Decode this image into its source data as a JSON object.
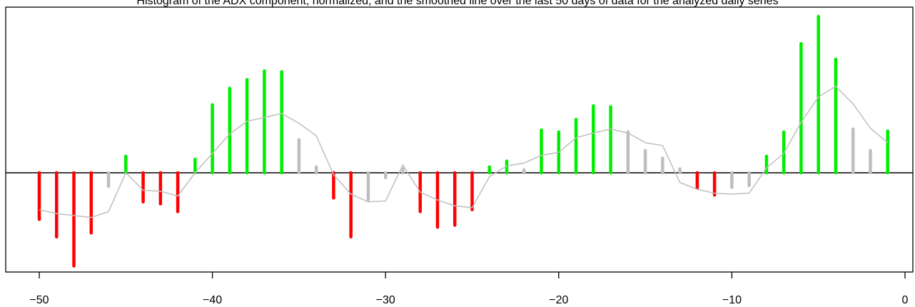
{
  "chart_data": {
    "type": "bar",
    "title": "Histogram of the ADX component, normalized, and the smoothed line over the last 50 days of data for the analyzed daily series",
    "xlim": [
      -50,
      0
    ],
    "ylim": [
      -5.2,
      8.1
    ],
    "grid": false,
    "legend": "none",
    "x_ticks": [
      -50,
      -40,
      -30,
      -20,
      -10,
      0
    ],
    "x_tick_labels": [
      "−50",
      "−40",
      "−30",
      "−20",
      "−10",
      "0"
    ],
    "x": [
      -50,
      -49,
      -48,
      -47,
      -46,
      -45,
      -44,
      -43,
      -42,
      -41,
      -40,
      -39,
      -38,
      -37,
      -36,
      -35,
      -34,
      -33,
      -32,
      -31,
      -30,
      -29,
      -28,
      -27,
      -26,
      -25,
      -24,
      -23,
      -22,
      -21,
      -20,
      -19,
      -18,
      -17,
      -16,
      -15,
      -14,
      -13,
      -12,
      -11,
      -10,
      -9,
      -8,
      -7,
      -6,
      -5,
      -4,
      -3,
      -2,
      -1
    ],
    "values": [
      -2.4,
      -3.3,
      -4.8,
      -3.1,
      -0.7,
      0.85,
      -1.5,
      -1.6,
      -2.0,
      0.7,
      3.5,
      4.35,
      4.8,
      5.25,
      5.2,
      1.7,
      0.3,
      -1.3,
      -3.3,
      -1.4,
      -0.25,
      0.2,
      -2.0,
      -2.8,
      -2.7,
      -1.9,
      0.3,
      0.6,
      0.15,
      2.2,
      2.1,
      2.75,
      3.45,
      3.4,
      2.1,
      1.15,
      0.75,
      0.2,
      -0.8,
      -1.15,
      -0.75,
      -0.65,
      0.85,
      2.1,
      6.65,
      8.05,
      5.85,
      2.25,
      1.15,
      2.15
    ],
    "colors": [
      "#FF0000",
      "#FF0000",
      "#FF0000",
      "#FF0000",
      "#BEBEBE",
      "#00EE00",
      "#FF0000",
      "#FF0000",
      "#FF0000",
      "#00EE00",
      "#00EE00",
      "#00EE00",
      "#00EE00",
      "#00EE00",
      "#00EE00",
      "#BEBEBE",
      "#BEBEBE",
      "#FF0000",
      "#FF0000",
      "#BEBEBE",
      "#BEBEBE",
      "#BEBEBE",
      "#FF0000",
      "#FF0000",
      "#FF0000",
      "#FF0000",
      "#00EE00",
      "#00EE00",
      "#BEBEBE",
      "#00EE00",
      "#00EE00",
      "#00EE00",
      "#00EE00",
      "#00EE00",
      "#BEBEBE",
      "#BEBEBE",
      "#BEBEBE",
      "#BEBEBE",
      "#FF0000",
      "#FF0000",
      "#BEBEBE",
      "#BEBEBE",
      "#00EE00",
      "#00EE00",
      "#00EE00",
      "#00EE00",
      "#00EE00",
      "#BEBEBE",
      "#BEBEBE",
      "#00EE00"
    ],
    "line": {
      "color": "#BEBEBE",
      "values": [
        -1.9,
        -2.1,
        -2.2,
        -2.3,
        -2.0,
        0.0,
        -0.9,
        -0.95,
        -1.2,
        0.0,
        1.0,
        2.0,
        2.65,
        2.85,
        3.05,
        2.55,
        1.9,
        -0.1,
        -1.1,
        -1.5,
        -1.45,
        0.4,
        -1.0,
        -1.4,
        -1.7,
        -1.8,
        -0.2,
        0.35,
        0.5,
        0.9,
        1.05,
        1.8,
        2.05,
        2.25,
        2.05,
        1.55,
        1.4,
        -0.5,
        -0.85,
        -1.05,
        -1.1,
        -1.05,
        0.25,
        1.0,
        2.6,
        3.9,
        4.45,
        3.55,
        2.3,
        1.55
      ]
    },
    "colors_legend": {
      "positive": "#00EE00",
      "negative": "#FF0000",
      "neutral": "#BEBEBE",
      "axis": "#000000"
    }
  }
}
